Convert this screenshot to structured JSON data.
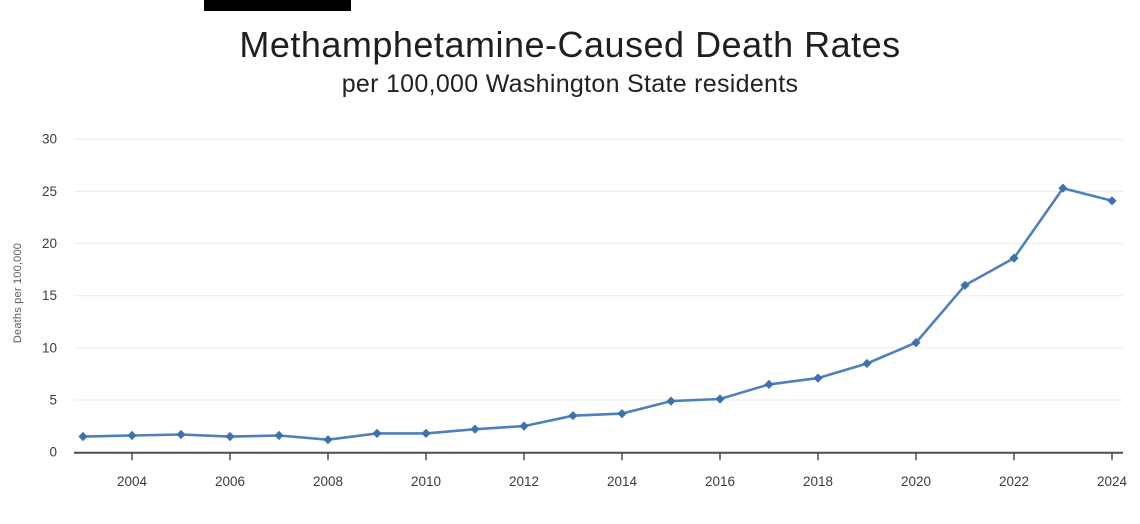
{
  "header": {
    "title": "Methamphetamine-Caused Death Rates",
    "subtitle": "per 100,000 Washington State residents"
  },
  "chart_data": {
    "type": "line",
    "title": "Methamphetamine-Caused Death Rates",
    "subtitle": "per 100,000 Washington State residents",
    "xlabel": "",
    "ylabel": "Deaths per 100,000",
    "x": [
      2003,
      2004,
      2005,
      2006,
      2007,
      2008,
      2009,
      2010,
      2011,
      2012,
      2013,
      2014,
      2015,
      2016,
      2017,
      2018,
      2019,
      2020,
      2021,
      2022,
      2023,
      2024
    ],
    "values": [
      1.5,
      1.6,
      1.7,
      1.5,
      1.6,
      1.2,
      1.8,
      1.8,
      2.2,
      2.5,
      3.5,
      3.7,
      4.9,
      5.1,
      6.5,
      7.1,
      8.5,
      10.5,
      16.0,
      18.6,
      25.3,
      24.1
    ],
    "x_ticks": [
      2004,
      2006,
      2008,
      2010,
      2012,
      2014,
      2016,
      2018,
      2020,
      2022,
      2024
    ],
    "y_ticks": [
      0,
      5,
      10,
      15,
      20,
      25,
      30
    ],
    "ylim": [
      0,
      30
    ],
    "xlim": [
      2003,
      2024
    ],
    "grid": true,
    "legend": false,
    "marker": "diamond",
    "colors": {
      "line": "#4e81bb",
      "marker": "#3d72ac",
      "grid": "#eaeaea",
      "axis": "#4d4d4d",
      "tick_label": "#3c3c3c",
      "y_axis_title": "#5a5a5a",
      "title": "#1f1f1f",
      "top_bar": "#000000"
    }
  }
}
